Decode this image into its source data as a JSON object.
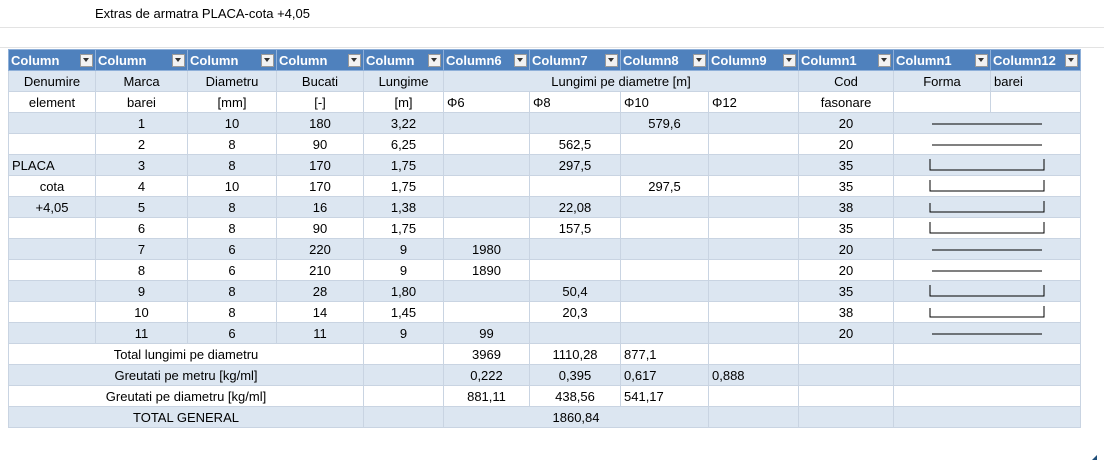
{
  "title": "Extras de armatra PLACA-cota +4,05",
  "headers": [
    "Column",
    "Column",
    "Column",
    "Column",
    "Column",
    "Column6",
    "Column7",
    "Column8",
    "Column9",
    "Column1",
    "Column1",
    "Column12"
  ],
  "row1": {
    "denumire": "Denumire",
    "marca": "Marca",
    "diametru": "Diametru",
    "bucati": "Bucati",
    "lungime": "Lungime",
    "lungimi": "Lungimi pe diametre [m]",
    "cod": "Cod",
    "forma": "Forma",
    "barei": "barei"
  },
  "row2": {
    "element": "element",
    "barei": "barei",
    "mm": "[mm]",
    "unit": "[-]",
    "m": "[m]",
    "d6": "Φ6",
    "d8": "Φ8",
    "d10": "Φ10",
    "d12": "Φ12",
    "fasonare": "fasonare"
  },
  "rows": [
    {
      "den": "",
      "marca": "1",
      "diam": "10",
      "buc": "180",
      "lung": "3,22",
      "d6": "",
      "d8": "",
      "d10": "579,6",
      "d12": "",
      "cod": "20",
      "shape": "straight"
    },
    {
      "den": "",
      "marca": "2",
      "diam": "8",
      "buc": "90",
      "lung": "6,25",
      "d6": "",
      "d8": "562,5",
      "d10": "",
      "d12": "",
      "cod": "20",
      "shape": "straight"
    },
    {
      "den": "PLACA",
      "marca": "3",
      "diam": "8",
      "buc": "170",
      "lung": "1,75",
      "d6": "",
      "d8": "297,5",
      "d10": "",
      "d12": "",
      "cod": "35",
      "shape": "u"
    },
    {
      "den": "cota",
      "marca": "4",
      "diam": "10",
      "buc": "170",
      "lung": "1,75",
      "d6": "",
      "d8": "",
      "d10": "297,5",
      "d12": "",
      "cod": "35",
      "shape": "u"
    },
    {
      "den": "+4,05",
      "marca": "5",
      "diam": "8",
      "buc": "16",
      "lung": "1,38",
      "d6": "",
      "d8": "22,08",
      "d10": "",
      "d12": "",
      "cod": "38",
      "shape": "l"
    },
    {
      "den": "",
      "marca": "6",
      "diam": "8",
      "buc": "90",
      "lung": "1,75",
      "d6": "",
      "d8": "157,5",
      "d10": "",
      "d12": "",
      "cod": "35",
      "shape": "u"
    },
    {
      "den": "",
      "marca": "7",
      "diam": "6",
      "buc": "220",
      "lung": "9",
      "d6": "1980",
      "d8": "",
      "d10": "",
      "d12": "",
      "cod": "20",
      "shape": "straight"
    },
    {
      "den": "",
      "marca": "8",
      "diam": "6",
      "buc": "210",
      "lung": "9",
      "d6": "1890",
      "d8": "",
      "d10": "",
      "d12": "",
      "cod": "20",
      "shape": "straight"
    },
    {
      "den": "",
      "marca": "9",
      "diam": "8",
      "buc": "28",
      "lung": "1,80",
      "d6": "",
      "d8": "50,4",
      "d10": "",
      "d12": "",
      "cod": "35",
      "shape": "u"
    },
    {
      "den": "",
      "marca": "10",
      "diam": "8",
      "buc": "14",
      "lung": "1,45",
      "d6": "",
      "d8": "20,3",
      "d10": "",
      "d12": "",
      "cod": "38",
      "shape": "l"
    },
    {
      "den": "",
      "marca": "11",
      "diam": "6",
      "buc": "11",
      "lung": "9",
      "d6": "99",
      "d8": "",
      "d10": "",
      "d12": "",
      "cod": "20",
      "shape": "straight"
    }
  ],
  "totals": [
    {
      "label": "Total lungimi pe diametru",
      "d6": "3969",
      "d8": "1110,28",
      "d10": "877,1",
      "d12": ""
    },
    {
      "label": "Greutati pe metru [kg/ml]",
      "d6": "0,222",
      "d8": "0,395",
      "d10": "0,617",
      "d12": "0,888"
    },
    {
      "label": "Greutati pe diametru [kg/ml]",
      "d6": "881,11",
      "d8": "438,56",
      "d10": "541,17",
      "d12": ""
    }
  ],
  "total_general": {
    "label": "TOTAL GENERAL",
    "value": "1860,84"
  }
}
